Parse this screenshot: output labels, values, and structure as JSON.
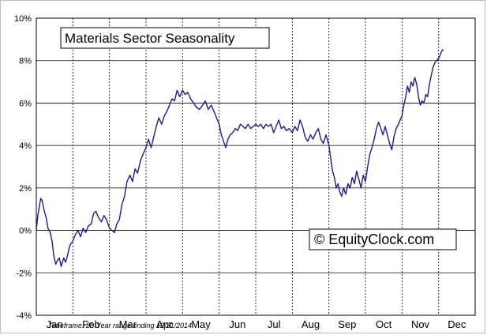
{
  "chart_data": {
    "type": "line",
    "title": "Materials Sector Seasonality",
    "watermark": "© EquityClock.com",
    "footnote": "Timeframe: 20-Year range ending 12/31/2014",
    "xlabel": "",
    "ylabel": "",
    "ylim": [
      -4,
      10
    ],
    "yticks": [
      -4,
      -2,
      0,
      2,
      4,
      6,
      8,
      10
    ],
    "ytick_labels": [
      "-4%",
      "-2%",
      "0%",
      "2%",
      "4%",
      "6%",
      "8%",
      "10%"
    ],
    "months": [
      "Jan",
      "Feb",
      "Mar",
      "Apr",
      "May",
      "Jun",
      "Jul",
      "Aug",
      "Sep",
      "Oct",
      "Nov",
      "Dec"
    ],
    "grid": true,
    "legend": "none",
    "line_color": "#1c1c8c",
    "series": [
      {
        "values_by_month_fraction": [
          [
            0.0,
            0.0
          ],
          [
            0.04,
            0.7
          ],
          [
            0.08,
            1.1
          ],
          [
            0.12,
            1.5
          ],
          [
            0.16,
            1.4
          ],
          [
            0.22,
            0.9
          ],
          [
            0.27,
            0.6
          ],
          [
            0.32,
            0.1
          ],
          [
            0.38,
            -0.1
          ],
          [
            0.43,
            -0.5
          ],
          [
            0.48,
            -1.2
          ],
          [
            0.53,
            -1.6
          ],
          [
            0.58,
            -1.4
          ],
          [
            0.63,
            -1.3
          ],
          [
            0.68,
            -1.7
          ],
          [
            0.75,
            -1.3
          ],
          [
            0.8,
            -1.5
          ],
          [
            0.85,
            -1.2
          ],
          [
            0.92,
            -0.7
          ],
          [
            1.0,
            -0.5
          ],
          [
            1.07,
            -0.2
          ],
          [
            1.14,
            0.0
          ],
          [
            1.21,
            -0.3
          ],
          [
            1.28,
            0.1
          ],
          [
            1.35,
            -0.1
          ],
          [
            1.42,
            0.2
          ],
          [
            1.5,
            0.3
          ],
          [
            1.57,
            0.8
          ],
          [
            1.63,
            0.9
          ],
          [
            1.7,
            0.6
          ],
          [
            1.78,
            0.4
          ],
          [
            1.85,
            0.7
          ],
          [
            1.92,
            0.5
          ],
          [
            2.0,
            0.1
          ],
          [
            2.07,
            0.0
          ],
          [
            2.14,
            -0.1
          ],
          [
            2.2,
            0.3
          ],
          [
            2.27,
            0.5
          ],
          [
            2.34,
            1.2
          ],
          [
            2.41,
            1.6
          ],
          [
            2.48,
            2.3
          ],
          [
            2.56,
            2.6
          ],
          [
            2.63,
            2.3
          ],
          [
            2.7,
            2.9
          ],
          [
            2.77,
            2.7
          ],
          [
            2.85,
            3.3
          ],
          [
            2.92,
            3.6
          ],
          [
            3.0,
            3.9
          ],
          [
            3.07,
            4.3
          ],
          [
            3.14,
            3.9
          ],
          [
            3.21,
            4.4
          ],
          [
            3.28,
            4.9
          ],
          [
            3.35,
            5.3
          ],
          [
            3.43,
            5.0
          ],
          [
            3.5,
            5.4
          ],
          [
            3.57,
            5.6
          ],
          [
            3.64,
            5.9
          ],
          [
            3.71,
            6.2
          ],
          [
            3.78,
            6.1
          ],
          [
            3.85,
            6.6
          ],
          [
            3.92,
            6.3
          ],
          [
            4.0,
            6.6
          ],
          [
            4.07,
            6.4
          ],
          [
            4.14,
            6.5
          ],
          [
            4.22,
            6.2
          ],
          [
            4.3,
            6.0
          ],
          [
            4.38,
            5.8
          ],
          [
            4.46,
            5.7
          ],
          [
            4.55,
            5.9
          ],
          [
            4.62,
            6.1
          ],
          [
            4.7,
            5.7
          ],
          [
            4.78,
            5.9
          ],
          [
            4.86,
            5.6
          ],
          [
            4.93,
            5.3
          ],
          [
            5.0,
            5.0
          ],
          [
            5.06,
            4.5
          ],
          [
            5.12,
            4.2
          ],
          [
            5.18,
            3.9
          ],
          [
            5.24,
            4.3
          ],
          [
            5.3,
            4.5
          ],
          [
            5.37,
            4.6
          ],
          [
            5.44,
            4.8
          ],
          [
            5.51,
            4.7
          ],
          [
            5.58,
            5.0
          ],
          [
            5.65,
            4.9
          ],
          [
            5.72,
            4.8
          ],
          [
            5.79,
            5.0
          ],
          [
            5.86,
            4.8
          ],
          [
            5.93,
            4.9
          ],
          [
            6.0,
            5.0
          ],
          [
            6.07,
            4.9
          ],
          [
            6.14,
            5.0
          ],
          [
            6.21,
            4.8
          ],
          [
            6.28,
            5.0
          ],
          [
            6.35,
            4.9
          ],
          [
            6.42,
            5.0
          ],
          [
            6.49,
            4.6
          ],
          [
            6.56,
            4.9
          ],
          [
            6.63,
            5.2
          ],
          [
            6.7,
            4.8
          ],
          [
            6.77,
            4.9
          ],
          [
            6.84,
            4.7
          ],
          [
            6.91,
            4.8
          ],
          [
            7.0,
            4.6
          ],
          [
            7.07,
            4.9
          ],
          [
            7.14,
            4.7
          ],
          [
            7.21,
            5.2
          ],
          [
            7.28,
            4.9
          ],
          [
            7.35,
            4.4
          ],
          [
            7.42,
            4.2
          ],
          [
            7.5,
            4.5
          ],
          [
            7.57,
            4.3
          ],
          [
            7.64,
            4.6
          ],
          [
            7.71,
            4.8
          ],
          [
            7.78,
            4.3
          ],
          [
            7.85,
            4.1
          ],
          [
            7.92,
            4.5
          ],
          [
            8.0,
            4.0
          ],
          [
            8.05,
            3.4
          ],
          [
            8.1,
            2.8
          ],
          [
            8.15,
            2.5
          ],
          [
            8.2,
            2.0
          ],
          [
            8.25,
            2.2
          ],
          [
            8.3,
            1.8
          ],
          [
            8.35,
            1.6
          ],
          [
            8.4,
            2.0
          ],
          [
            8.46,
            1.7
          ],
          [
            8.52,
            2.2
          ],
          [
            8.58,
            2.0
          ],
          [
            8.64,
            2.5
          ],
          [
            8.7,
            2.2
          ],
          [
            8.76,
            2.8
          ],
          [
            8.82,
            2.4
          ],
          [
            8.88,
            2.0
          ],
          [
            8.94,
            2.6
          ],
          [
            9.0,
            2.3
          ],
          [
            9.06,
            3.0
          ],
          [
            9.12,
            3.6
          ],
          [
            9.18,
            3.9
          ],
          [
            9.24,
            4.3
          ],
          [
            9.3,
            4.8
          ],
          [
            9.36,
            5.1
          ],
          [
            9.42,
            4.8
          ],
          [
            9.48,
            4.5
          ],
          [
            9.54,
            4.9
          ],
          [
            9.6,
            4.5
          ],
          [
            9.66,
            4.1
          ],
          [
            9.72,
            3.8
          ],
          [
            9.78,
            4.4
          ],
          [
            9.84,
            4.8
          ],
          [
            9.9,
            5.0
          ],
          [
            10.0,
            5.4
          ],
          [
            10.05,
            5.9
          ],
          [
            10.1,
            6.3
          ],
          [
            10.15,
            6.8
          ],
          [
            10.2,
            6.5
          ],
          [
            10.25,
            7.0
          ],
          [
            10.3,
            6.8
          ],
          [
            10.35,
            7.2
          ],
          [
            10.4,
            6.9
          ],
          [
            10.45,
            6.3
          ],
          [
            10.5,
            5.9
          ],
          [
            10.55,
            6.1
          ],
          [
            10.6,
            6.0
          ],
          [
            10.65,
            6.4
          ],
          [
            10.7,
            6.3
          ],
          [
            10.75,
            6.9
          ],
          [
            10.8,
            7.3
          ],
          [
            10.85,
            7.7
          ],
          [
            10.9,
            7.9
          ],
          [
            10.95,
            8.0
          ],
          [
            11.0,
            8.1
          ],
          [
            11.05,
            8.3
          ],
          [
            11.1,
            8.5
          ],
          [
            11.14,
            8.5
          ]
        ]
      }
    ]
  }
}
